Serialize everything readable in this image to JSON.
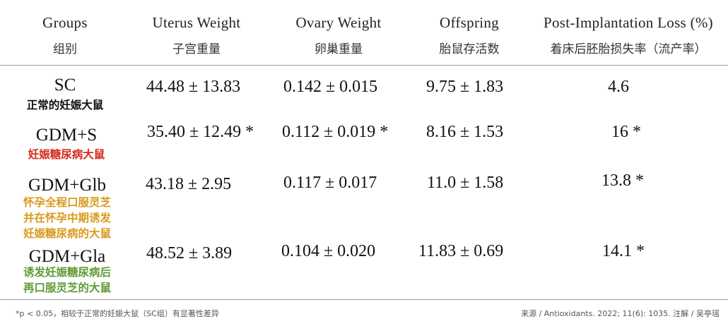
{
  "headers": [
    {
      "en": "Groups",
      "zh": "组别"
    },
    {
      "en": "Uterus Weight",
      "zh": "子宫重量"
    },
    {
      "en": "Ovary Weight",
      "zh": "卵巢重量"
    },
    {
      "en": "Offspring",
      "zh": "胎鼠存活数"
    },
    {
      "en": "Post-Implantation Loss (%)",
      "zh": "着床后胚胎损失率（流产率）"
    }
  ],
  "rows": [
    {
      "group_en": "SC",
      "group_zh": [
        "正常的妊娠大鼠"
      ],
      "group_zh_color": "#111111",
      "uterus": "44.48 ± 13.83",
      "ovary": "0.142 ± 0.015",
      "offspring": "9.75 ± 1.83",
      "loss": "4.6"
    },
    {
      "group_en": "GDM+S",
      "group_zh": [
        "妊娠糖尿病大鼠"
      ],
      "group_zh_color": "#d42a1f",
      "uterus": "35.40 ± 12.49 *",
      "ovary": "0.112 ± 0.019 *",
      "offspring": "8.16 ± 1.53",
      "loss": "16 *"
    },
    {
      "group_en": "GDM+Glb",
      "group_zh": [
        "怀孕全程口服灵芝",
        "并在怀孕中期诱发",
        "妊娠糖尿病的大鼠"
      ],
      "group_zh_color": "#d99a1c",
      "uterus": "43.18 ± 2.95",
      "ovary": "0.117 ± 0.017",
      "offspring": "11.0 ± 1.58",
      "loss": "13.8 *"
    },
    {
      "group_en": "GDM+Gla",
      "group_zh": [
        "诱发妊娠糖尿病后",
        "再口服灵芝的大鼠"
      ],
      "group_zh_color": "#5f9b35",
      "uterus": "48.52 ± 3.89",
      "ovary": "0.104 ± 0.020",
      "offspring": "11.83 ± 0.69",
      "loss": "14.1 *"
    }
  ],
  "footnote": "*p < 0.05，相较于正常的妊娠大鼠（SC组）有显著性差异",
  "source": "来源 / Antioxidants. 2022; 11(6): 1035.   注解 / 吴亭瑶"
}
